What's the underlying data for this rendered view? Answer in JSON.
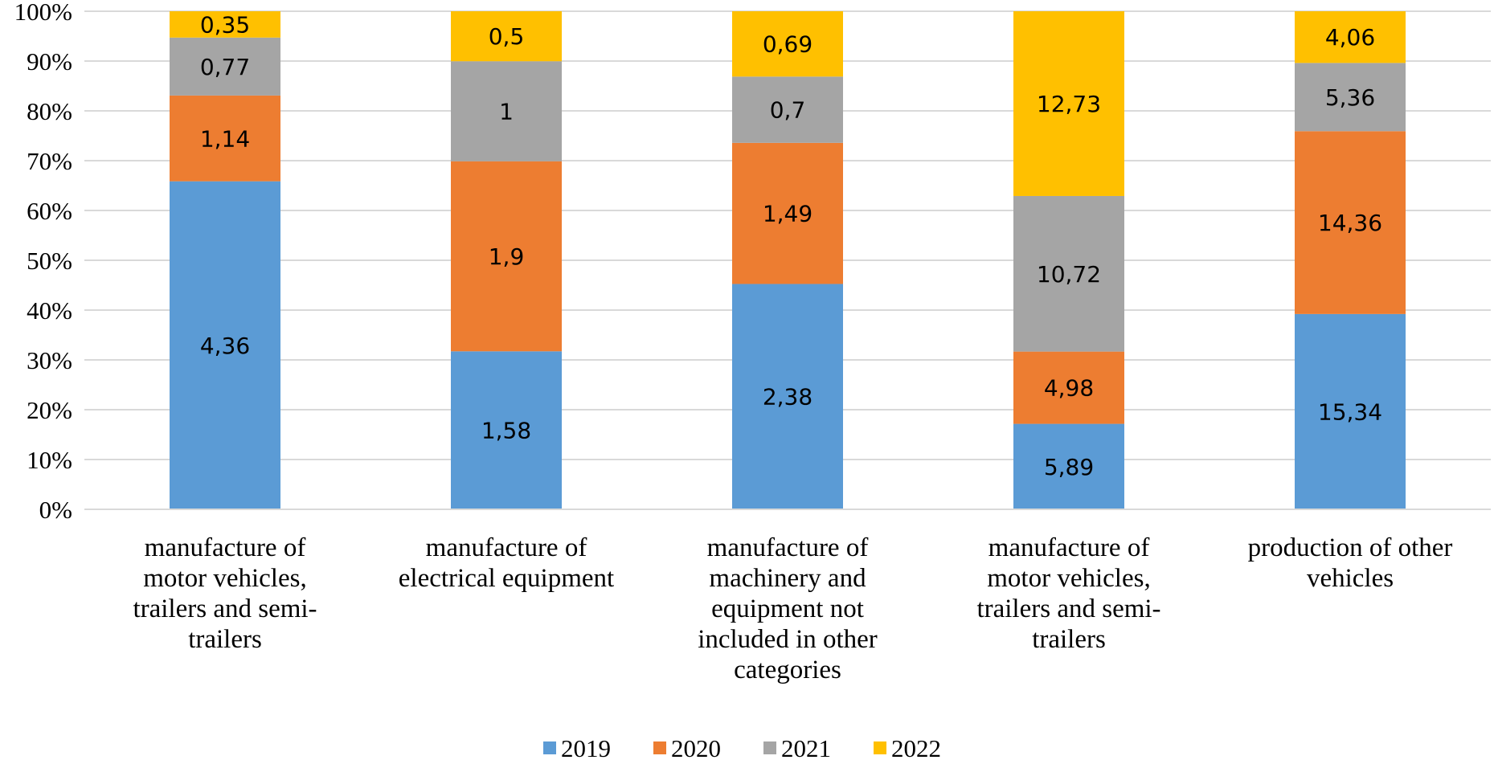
{
  "chart_data": {
    "type": "bar",
    "stacked": "percent",
    "categories": [
      "manufacture of motor vehicles, trailers and semi-trailers",
      "manufacture of electrical equipment",
      "manufacture of machinery and equipment not included in other categories",
      "manufacture of motor vehicles, trailers and semi-trailers",
      "production of other vehicles"
    ],
    "category_lines": [
      [
        "manufacture of",
        "motor vehicles,",
        "trailers and semi-",
        "trailers"
      ],
      [
        "manufacture of",
        "electrical equipment"
      ],
      [
        "manufacture of",
        "machinery and",
        "equipment not",
        "included in other",
        "categories"
      ],
      [
        "manufacture of",
        "motor vehicles,",
        "trailers and semi-",
        "trailers"
      ],
      [
        "production of other",
        "vehicles"
      ]
    ],
    "series": [
      {
        "name": "2019",
        "color": "#5b9bd5",
        "values": [
          4.36,
          1.58,
          2.38,
          5.89,
          15.34
        ],
        "labels": [
          "4,36",
          "1,58",
          "2,38",
          "5,89",
          "15,34"
        ]
      },
      {
        "name": "2020",
        "color": "#ed7d31",
        "values": [
          1.14,
          1.9,
          1.49,
          4.98,
          14.36
        ],
        "labels": [
          "1,14",
          "1,9",
          "1,49",
          "4,98",
          "14,36"
        ]
      },
      {
        "name": "2021",
        "color": "#a5a5a5",
        "values": [
          0.77,
          1,
          0.7,
          10.72,
          5.36
        ],
        "labels": [
          "0,77",
          "1",
          "0,7",
          "10,72",
          "5,36"
        ]
      },
      {
        "name": "2022",
        "color": "#ffc000",
        "values": [
          0.35,
          0.5,
          0.69,
          12.73,
          4.06
        ],
        "labels": [
          "0,35",
          "0,5",
          "0,69",
          "12,73",
          "4,06"
        ]
      }
    ],
    "yticks": [
      "0%",
      "10%",
      "20%",
      "30%",
      "40%",
      "50%",
      "60%",
      "70%",
      "80%",
      "90%",
      "100%"
    ],
    "ylim": [
      0,
      100
    ],
    "grid": true,
    "gridline_color": "#d9d9d9",
    "legend_position": "bottom"
  }
}
